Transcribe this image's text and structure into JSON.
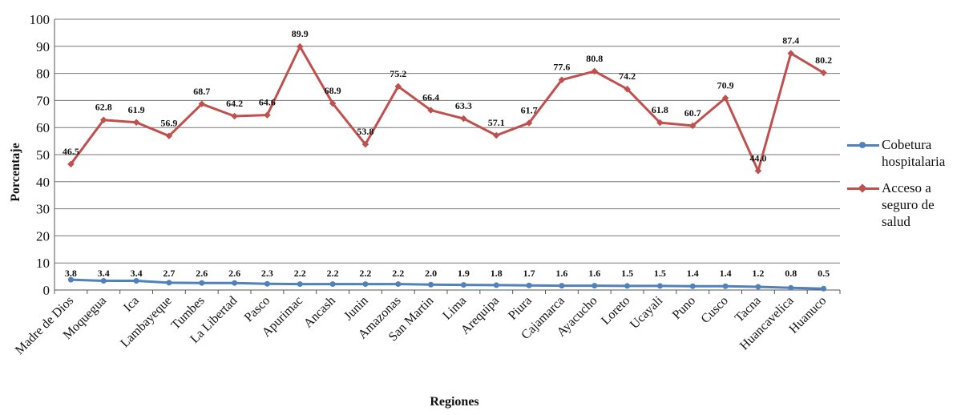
{
  "chart_data": {
    "type": "line",
    "title": "",
    "xlabel": "Regiones",
    "ylabel": "Porcentaje",
    "ylim": [
      0,
      100
    ],
    "yticks": [
      0,
      10,
      20,
      30,
      40,
      50,
      60,
      70,
      80,
      90,
      100
    ],
    "grid": true,
    "legend_position": "right",
    "categories": [
      "Madre de Dios",
      "Moquegua",
      "Ica",
      "Lambayeque",
      "Tumbes",
      "La Libertad",
      "Pasco",
      "Apurimac",
      "Ancash",
      "Junin",
      "Amazonas",
      "San Martin",
      "Lima",
      "Arequipa",
      "Piura",
      "Cajamarca",
      "Ayacucho",
      "Loreto",
      "Ucayali",
      "Puno",
      "Cusco",
      "Tacna",
      "Huancavelica",
      "Huanuco"
    ],
    "series": [
      {
        "name": "Cobetura hospitalaria",
        "color": "#4f81bd",
        "values": [
          3.8,
          3.4,
          3.4,
          2.7,
          2.6,
          2.6,
          2.3,
          2.2,
          2.2,
          2.2,
          2.2,
          2.0,
          1.9,
          1.8,
          1.7,
          1.6,
          1.6,
          1.5,
          1.5,
          1.4,
          1.4,
          1.2,
          0.8,
          0.5
        ],
        "labels": [
          "3.8",
          "3.4",
          "3.4",
          "2.7",
          "2.6",
          "2.6",
          "2.3",
          "2.2",
          "2.2",
          "2.2",
          "2.2",
          "2.0",
          "1.9",
          "1.8",
          "1.7",
          "1.6",
          "1.6",
          "1.5",
          "1.5",
          "1.4",
          "1.4",
          "1.2",
          "0.8",
          "0.5"
        ]
      },
      {
        "name": "Acceso a seguro de salud",
        "color": "#c0504d",
        "values": [
          46.5,
          62.8,
          61.9,
          56.9,
          68.7,
          64.2,
          64.6,
          89.9,
          68.9,
          53.8,
          75.2,
          66.4,
          63.3,
          57.1,
          61.7,
          77.6,
          80.8,
          74.2,
          61.8,
          60.7,
          70.9,
          44.0,
          87.4,
          80.2
        ],
        "labels": [
          "46.5",
          "62.8",
          "61.9",
          "56.9",
          "68.7",
          "64.2",
          "64.6",
          "89.9",
          "68.9",
          "53.8",
          "75.2",
          "66.4",
          "63.3",
          "57.1",
          "61.7",
          "77.6",
          "80.8",
          "74.2",
          "61.8",
          "60.7",
          "70.9",
          "44.0",
          "87.4",
          "80.2"
        ]
      }
    ],
    "legend": [
      {
        "lines": [
          "Cobetura",
          "hospitalaria"
        ],
        "color": "#4f81bd"
      },
      {
        "lines": [
          "Acceso a",
          "seguro de",
          "salud"
        ],
        "color": "#c0504d"
      }
    ]
  }
}
